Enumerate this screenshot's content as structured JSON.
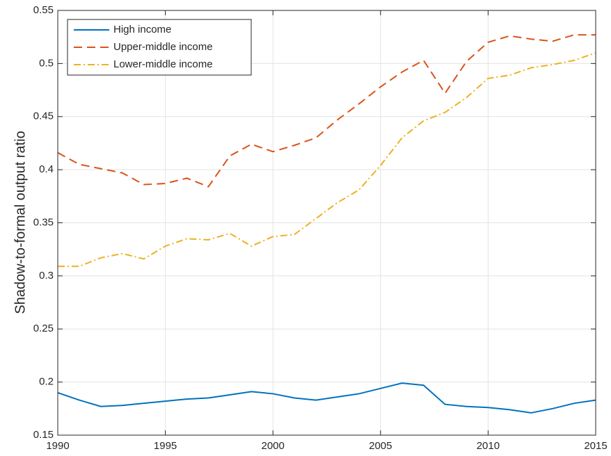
{
  "chart_data": {
    "type": "line",
    "ylabel": "Shadow-to-formal output ratio",
    "x": [
      1990,
      1991,
      1992,
      1993,
      1994,
      1995,
      1996,
      1997,
      1998,
      1999,
      2000,
      2001,
      2002,
      2003,
      2004,
      2005,
      2006,
      2007,
      2008,
      2009,
      2010,
      2011,
      2012,
      2013,
      2014,
      2015
    ],
    "series": [
      {
        "name": "High income",
        "color": "#0072bd",
        "line_style": "solid",
        "values": [
          0.19,
          0.183,
          0.177,
          0.178,
          0.18,
          0.182,
          0.184,
          0.185,
          0.188,
          0.191,
          0.189,
          0.185,
          0.183,
          0.186,
          0.189,
          0.194,
          0.199,
          0.197,
          0.179,
          0.177,
          0.176,
          0.174,
          0.171,
          0.175,
          0.18,
          0.183
        ]
      },
      {
        "name": "Upper-middle income",
        "color": "#d95319",
        "line_style": "dashed",
        "values": [
          0.416,
          0.405,
          0.401,
          0.397,
          0.386,
          0.387,
          0.392,
          0.384,
          0.413,
          0.424,
          0.417,
          0.423,
          0.43,
          0.447,
          0.462,
          0.478,
          0.492,
          0.503,
          0.472,
          0.502,
          0.52,
          0.526,
          0.523,
          0.521,
          0.527,
          0.527
        ]
      },
      {
        "name": "Lower-middle income",
        "color": "#edb120",
        "line_style": "dashdot",
        "values": [
          0.309,
          0.309,
          0.317,
          0.321,
          0.316,
          0.328,
          0.335,
          0.334,
          0.34,
          0.328,
          0.337,
          0.339,
          0.354,
          0.369,
          0.381,
          0.404,
          0.43,
          0.446,
          0.454,
          0.468,
          0.486,
          0.489,
          0.496,
          0.499,
          0.503,
          0.51
        ]
      }
    ],
    "xlim": [
      1990,
      2015
    ],
    "xticks": [
      1990,
      1995,
      2000,
      2005,
      2010,
      2015
    ],
    "ylim": [
      0.15,
      0.55
    ],
    "yticks": [
      0.15,
      0.2,
      0.25,
      0.3,
      0.35,
      0.4,
      0.45,
      0.5,
      0.55
    ],
    "grid": true,
    "legend": "upper-left"
  }
}
